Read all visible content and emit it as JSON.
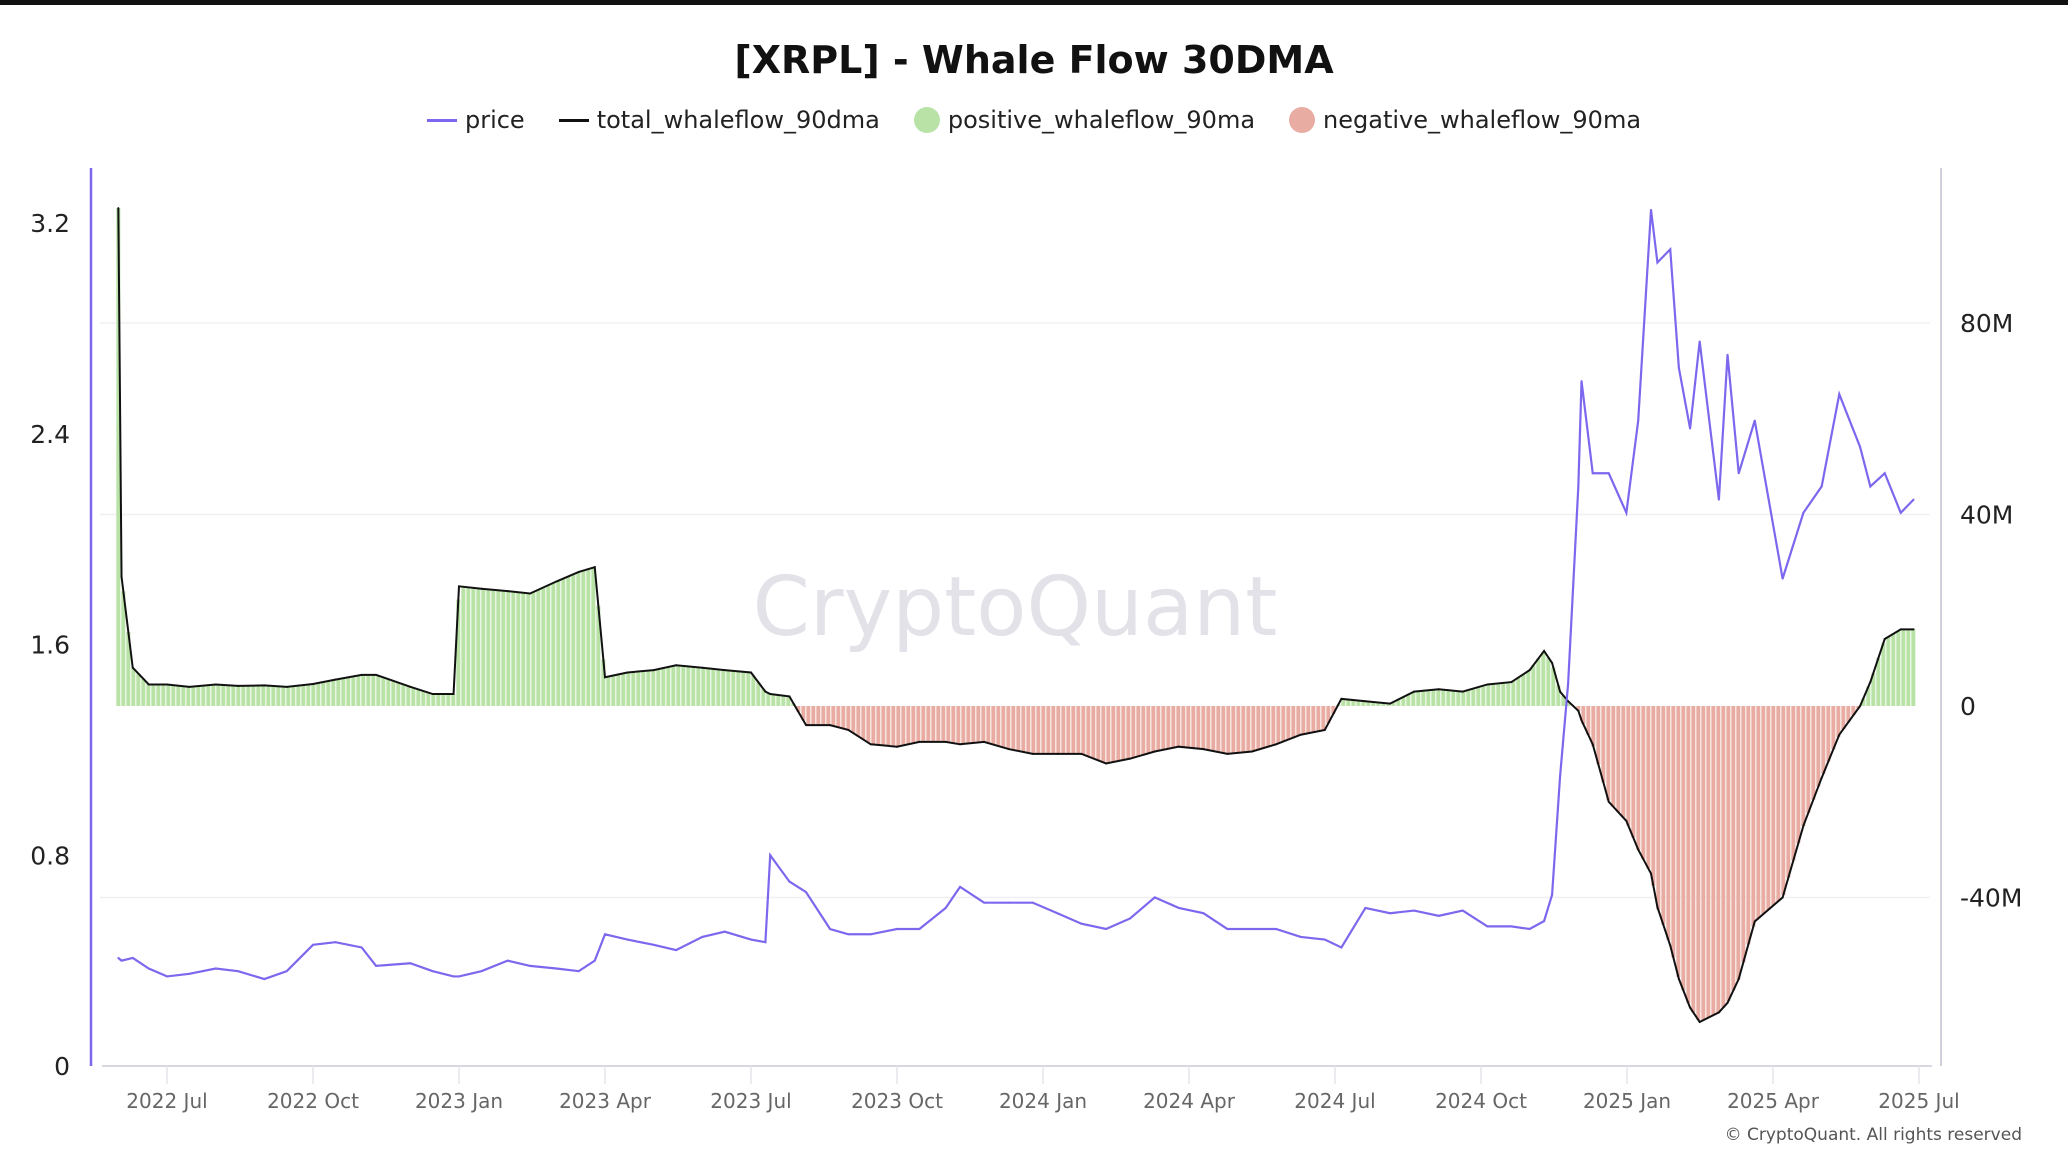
{
  "chart_data": {
    "type": "line+bar",
    "title": "[XRPL] - Whale Flow 30DMA",
    "legend": [
      {
        "name": "price",
        "color": "#7b68ee",
        "marker": "line"
      },
      {
        "name": "total_whaleflow_90dma",
        "color": "#111111",
        "marker": "line"
      },
      {
        "name": "positive_whaleflow_90ma",
        "color": "#b9e3a6",
        "marker": "circle"
      },
      {
        "name": "negative_whaleflow_90ma",
        "color": "#e8aca3",
        "marker": "circle"
      }
    ],
    "legend_position": "top",
    "watermark": "CryptoQuant",
    "copyright": "© CryptoQuant. All rights reserved",
    "x_ticks": [
      "2022 Jul",
      "2022 Oct",
      "2023 Jan",
      "2023 Apr",
      "2023 Jul",
      "2023 Oct",
      "2024 Jan",
      "2024 Apr",
      "2024 Jul",
      "2024 Oct",
      "2025 Jan",
      "2025 Apr",
      "2025 Jul"
    ],
    "y_left": {
      "range": [
        0,
        3.4
      ],
      "ticks": [
        "0",
        "0.8",
        "1.6",
        "2.4",
        "3.2"
      ],
      "series": "price"
    },
    "y_right": {
      "range": [
        -75000000,
        110000000
      ],
      "ticks": [
        {
          "v": -40000000,
          "label": "-40M"
        },
        {
          "v": 0,
          "label": "0"
        },
        {
          "v": 40000000,
          "label": "40M"
        },
        {
          "v": 80000000,
          "label": "80M"
        }
      ],
      "series": "total_whaleflow_90dma"
    },
    "grid": "horizontal",
    "dates": [
      "2022-06-01",
      "2022-06-03",
      "2022-06-10",
      "2022-06-20",
      "2022-07-01",
      "2022-07-15",
      "2022-08-01",
      "2022-08-15",
      "2022-09-01",
      "2022-09-15",
      "2022-10-01",
      "2022-10-15",
      "2022-11-01",
      "2022-11-10",
      "2022-12-01",
      "2022-12-15",
      "2022-12-28",
      "2023-01-01",
      "2023-01-15",
      "2023-02-01",
      "2023-02-15",
      "2023-03-01",
      "2023-03-15",
      "2023-03-25",
      "2023-04-01",
      "2023-04-15",
      "2023-05-01",
      "2023-05-15",
      "2023-06-01",
      "2023-06-15",
      "2023-07-01",
      "2023-07-10",
      "2023-07-13",
      "2023-07-25",
      "2023-08-05",
      "2023-08-20",
      "2023-09-01",
      "2023-09-15",
      "2023-10-01",
      "2023-10-15",
      "2023-11-01",
      "2023-11-10",
      "2023-11-25",
      "2023-12-10",
      "2023-12-25",
      "2024-01-10",
      "2024-01-25",
      "2024-02-10",
      "2024-02-25",
      "2024-03-10",
      "2024-03-25",
      "2024-04-10",
      "2024-04-25",
      "2024-05-10",
      "2024-05-25",
      "2024-06-10",
      "2024-06-25",
      "2024-07-05",
      "2024-07-20",
      "2024-08-05",
      "2024-08-20",
      "2024-09-05",
      "2024-09-20",
      "2024-10-05",
      "2024-10-20",
      "2024-11-01",
      "2024-11-10",
      "2024-11-15",
      "2024-11-20",
      "2024-11-25",
      "2024-12-01",
      "2024-12-03",
      "2024-12-10",
      "2024-12-20",
      "2024-12-31",
      "2025-01-08",
      "2025-01-16",
      "2025-01-20",
      "2025-01-28",
      "2025-02-03",
      "2025-02-10",
      "2025-02-16",
      "2025-02-28",
      "2025-03-03",
      "2025-03-10",
      "2025-03-20",
      "2025-04-07",
      "2025-04-20",
      "2025-05-01",
      "2025-05-12",
      "2025-05-25",
      "2025-06-01",
      "2025-06-10",
      "2025-06-20",
      "2025-06-28"
    ],
    "price": [
      0.41,
      0.4,
      0.41,
      0.37,
      0.34,
      0.35,
      0.37,
      0.36,
      0.33,
      0.36,
      0.46,
      0.47,
      0.45,
      0.38,
      0.39,
      0.36,
      0.34,
      0.34,
      0.36,
      0.4,
      0.38,
      0.37,
      0.36,
      0.4,
      0.5,
      0.48,
      0.46,
      0.44,
      0.49,
      0.51,
      0.48,
      0.47,
      0.8,
      0.7,
      0.66,
      0.52,
      0.5,
      0.5,
      0.52,
      0.52,
      0.6,
      0.68,
      0.62,
      0.62,
      0.62,
      0.58,
      0.54,
      0.52,
      0.56,
      0.64,
      0.6,
      0.58,
      0.52,
      0.52,
      0.52,
      0.49,
      0.48,
      0.45,
      0.6,
      0.58,
      0.59,
      0.57,
      0.59,
      0.53,
      0.53,
      0.52,
      0.55,
      0.65,
      1.1,
      1.45,
      2.2,
      2.6,
      2.25,
      2.25,
      2.1,
      2.45,
      3.25,
      3.05,
      3.1,
      2.65,
      2.42,
      2.75,
      2.15,
      2.7,
      2.25,
      2.45,
      1.85,
      2.1,
      2.2,
      2.55,
      2.35,
      2.2,
      2.25,
      2.1,
      2.15
    ],
    "total_whaleflow_90dma": [
      104000000,
      27000000,
      8000000,
      4500000,
      4500000,
      4000000,
      4500000,
      4200000,
      4300000,
      4000000,
      4600000,
      5500000,
      6500000,
      6500000,
      4000000,
      2500000,
      2500000,
      25000000,
      24500000,
      24000000,
      23500000,
      26000000,
      28000000,
      29000000,
      6000000,
      7000000,
      7500000,
      8500000,
      8000000,
      7500000,
      7000000,
      3000000,
      2500000,
      2000000,
      -4000000,
      -4000000,
      -5000000,
      -8000000,
      -8500000,
      -7500000,
      -7500000,
      -8000000,
      -7500000,
      -9000000,
      -10000000,
      -10000000,
      -10000000,
      -12000000,
      -11000000,
      -9500000,
      -8500000,
      -9000000,
      -10000000,
      -9500000,
      -8000000,
      -6000000,
      -5000000,
      1500000,
      1000000,
      500000,
      3000000,
      3500000,
      3000000,
      4500000,
      5000000,
      7500000,
      11500000,
      9000000,
      3000000,
      1000000,
      -1000000,
      -3000000,
      -8000000,
      -20000000,
      -24000000,
      -30000000,
      -35000000,
      -42000000,
      -50000000,
      -57000000,
      -63000000,
      -66000000,
      -64000000,
      -62000000,
      -57000000,
      -45000000,
      -40000000,
      -25000000,
      -15000000,
      -6000000,
      0,
      5000000,
      14000000,
      16000000,
      16000000
    ]
  }
}
